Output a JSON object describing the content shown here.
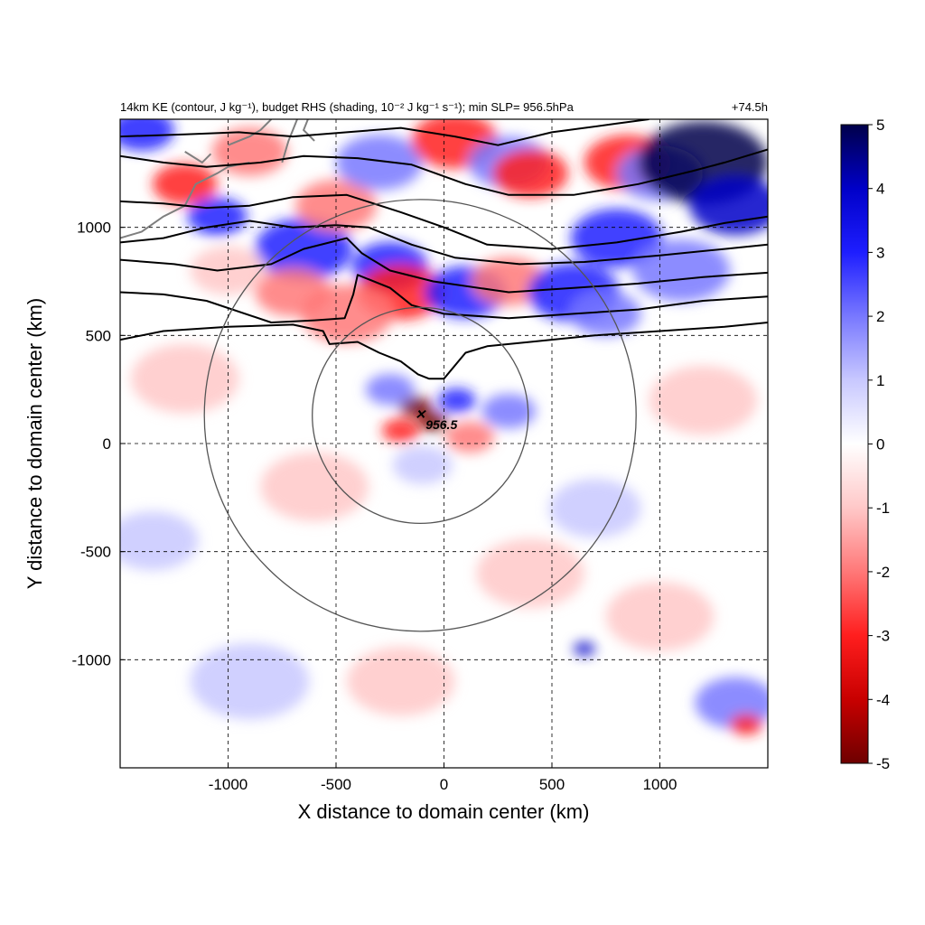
{
  "chart_data": {
    "type": "heatmap",
    "title_left": "14km KE (contour, J kg⁻¹), budget RHS (shading, 10⁻² J kg⁻¹ s⁻¹); min SLP= 956.5hPa",
    "title_right": "+74.5h",
    "xlabel": "X distance to domain center (km)",
    "ylabel": "Y distance to domain center (km)",
    "xlim": [
      -1500,
      1500
    ],
    "ylim": [
      -1500,
      1500
    ],
    "xticks": [
      -1000,
      -500,
      0,
      500,
      1000
    ],
    "yticks": [
      -1000,
      -500,
      0,
      500,
      1000
    ],
    "grid": true,
    "colorbar": {
      "min": -5,
      "max": 5,
      "ticks": [
        5,
        4,
        3,
        2,
        1,
        0,
        -1,
        -2,
        -3,
        -4,
        -5
      ],
      "colors": [
        "#00004a",
        "#0000c8",
        "#1e1eff",
        "#7878ff",
        "#c8c8ff",
        "#ffffff",
        "#ffc8c8",
        "#ff7878",
        "#ff1e1e",
        "#c80000",
        "#6e0000"
      ],
      "placement": "right"
    },
    "storm_center": {
      "x": -110,
      "y": 130,
      "label": "956.5",
      "marker": "x"
    },
    "range_rings_km": [
      500,
      1000
    ],
    "blobs": [
      {
        "x": -1400,
        "y": 1450,
        "r": 120,
        "v": 3
      },
      {
        "x": -1200,
        "y": 1200,
        "r": 120,
        "v": -3
      },
      {
        "x": -1050,
        "y": 1050,
        "r": 110,
        "v": 3
      },
      {
        "x": -900,
        "y": 1350,
        "r": 140,
        "v": -2
      },
      {
        "x": -650,
        "y": 900,
        "r": 180,
        "v": 3
      },
      {
        "x": -500,
        "y": 1100,
        "r": 150,
        "v": -2
      },
      {
        "x": -300,
        "y": 1300,
        "r": 160,
        "v": 2
      },
      {
        "x": -250,
        "y": 820,
        "r": 140,
        "v": 3
      },
      {
        "x": -200,
        "y": 700,
        "r": 160,
        "v": -3
      },
      {
        "x": -450,
        "y": 600,
        "r": 170,
        "v": -2
      },
      {
        "x": 50,
        "y": 1400,
        "r": 160,
        "v": -3
      },
      {
        "x": 300,
        "y": 1300,
        "r": 150,
        "v": 2
      },
      {
        "x": 400,
        "y": 1250,
        "r": 140,
        "v": -3
      },
      {
        "x": 100,
        "y": 700,
        "r": 150,
        "v": 3
      },
      {
        "x": 300,
        "y": 750,
        "r": 140,
        "v": -2
      },
      {
        "x": 600,
        "y": 700,
        "r": 170,
        "v": 3
      },
      {
        "x": 800,
        "y": 950,
        "r": 170,
        "v": 3
      },
      {
        "x": 850,
        "y": 1300,
        "r": 160,
        "v": -3
      },
      {
        "x": 1000,
        "y": 1250,
        "r": 160,
        "v": 2
      },
      {
        "x": 1200,
        "y": 1300,
        "r": 240,
        "v": 5
      },
      {
        "x": 1350,
        "y": 1100,
        "r": 170,
        "v": 4
      },
      {
        "x": 1100,
        "y": 800,
        "r": 180,
        "v": 2
      },
      {
        "x": 750,
        "y": 600,
        "r": 130,
        "v": 2
      },
      {
        "x": -700,
        "y": 700,
        "r": 140,
        "v": -2
      },
      {
        "x": -1000,
        "y": 800,
        "r": 140,
        "v": -1
      },
      {
        "x": -130,
        "y": 170,
        "r": 60,
        "v": -5
      },
      {
        "x": -50,
        "y": 100,
        "r": 55,
        "v": -5
      },
      {
        "x": -200,
        "y": 60,
        "r": 70,
        "v": -3
      },
      {
        "x": 60,
        "y": 200,
        "r": 70,
        "v": 3
      },
      {
        "x": -250,
        "y": 250,
        "r": 90,
        "v": 2
      },
      {
        "x": 120,
        "y": 30,
        "r": 90,
        "v": -2
      },
      {
        "x": 300,
        "y": 150,
        "r": 100,
        "v": 2
      },
      {
        "x": -100,
        "y": -100,
        "r": 110,
        "v": 1
      },
      {
        "x": -1350,
        "y": -450,
        "r": 170,
        "v": 1
      },
      {
        "x": -1200,
        "y": 300,
        "r": 200,
        "v": -1
      },
      {
        "x": -600,
        "y": -200,
        "r": 200,
        "v": -1
      },
      {
        "x": 400,
        "y": -600,
        "r": 200,
        "v": -1
      },
      {
        "x": 700,
        "y": -300,
        "r": 170,
        "v": 1
      },
      {
        "x": 650,
        "y": -950,
        "r": 40,
        "v": 4
      },
      {
        "x": 1350,
        "y": -1200,
        "r": 150,
        "v": 2
      },
      {
        "x": 1400,
        "y": -1300,
        "r": 60,
        "v": -3
      },
      {
        "x": -900,
        "y": -1100,
        "r": 220,
        "v": 1
      },
      {
        "x": -200,
        "y": -1100,
        "r": 200,
        "v": -1
      },
      {
        "x": 1000,
        "y": -800,
        "r": 200,
        "v": -1
      },
      {
        "x": 1200,
        "y": 200,
        "r": 200,
        "v": -1
      }
    ],
    "ke_contours": [
      [
        [
          -1500,
          480
        ],
        [
          -1300,
          520
        ],
        [
          -1000,
          540
        ],
        [
          -700,
          550
        ],
        [
          -560,
          520
        ],
        [
          -530,
          460
        ],
        [
          -400,
          470
        ],
        [
          -300,
          420
        ],
        [
          -200,
          380
        ],
        [
          -120,
          320
        ],
        [
          -70,
          300
        ],
        [
          0,
          300
        ],
        [
          100,
          420
        ],
        [
          200,
          450
        ],
        [
          400,
          470
        ],
        [
          700,
          500
        ],
        [
          1000,
          520
        ],
        [
          1300,
          540
        ],
        [
          1500,
          560
        ]
      ],
      [
        [
          -1500,
          700
        ],
        [
          -1300,
          690
        ],
        [
          -1100,
          660
        ],
        [
          -800,
          560
        ],
        [
          -600,
          570
        ],
        [
          -460,
          580
        ],
        [
          -420,
          690
        ],
        [
          -400,
          780
        ],
        [
          -250,
          720
        ],
        [
          -150,
          640
        ],
        [
          0,
          600
        ],
        [
          300,
          580
        ],
        [
          600,
          600
        ],
        [
          900,
          620
        ],
        [
          1200,
          660
        ],
        [
          1500,
          680
        ]
      ],
      [
        [
          -1500,
          850
        ],
        [
          -1250,
          830
        ],
        [
          -1050,
          800
        ],
        [
          -800,
          830
        ],
        [
          -650,
          900
        ],
        [
          -450,
          950
        ],
        [
          -380,
          880
        ],
        [
          -250,
          800
        ],
        [
          -50,
          750
        ],
        [
          300,
          700
        ],
        [
          600,
          720
        ],
        [
          900,
          740
        ],
        [
          1200,
          770
        ],
        [
          1500,
          790
        ]
      ],
      [
        [
          -1500,
          930
        ],
        [
          -1300,
          950
        ],
        [
          -1100,
          1000
        ],
        [
          -900,
          1030
        ],
        [
          -700,
          1000
        ],
        [
          -500,
          1010
        ],
        [
          -350,
          1000
        ],
        [
          -150,
          920
        ],
        [
          50,
          860
        ],
        [
          350,
          830
        ],
        [
          650,
          840
        ],
        [
          1000,
          870
        ],
        [
          1300,
          900
        ],
        [
          1500,
          920
        ]
      ],
      [
        [
          -1500,
          1120
        ],
        [
          -1300,
          1110
        ],
        [
          -1100,
          1090
        ],
        [
          -900,
          1100
        ],
        [
          -700,
          1140
        ],
        [
          -450,
          1150
        ],
        [
          -200,
          1070
        ],
        [
          0,
          1000
        ],
        [
          200,
          920
        ],
        [
          500,
          900
        ],
        [
          800,
          930
        ],
        [
          1100,
          980
        ],
        [
          1300,
          1020
        ],
        [
          1500,
          1050
        ]
      ],
      [
        [
          -1500,
          1330
        ],
        [
          -1300,
          1300
        ],
        [
          -1100,
          1280
        ],
        [
          -850,
          1300
        ],
        [
          -650,
          1330
        ],
        [
          -400,
          1320
        ],
        [
          -150,
          1290
        ],
        [
          100,
          1200
        ],
        [
          300,
          1150
        ],
        [
          600,
          1150
        ],
        [
          900,
          1200
        ],
        [
          1150,
          1260
        ],
        [
          1300,
          1300
        ],
        [
          1500,
          1360
        ]
      ],
      [
        [
          -1500,
          1420
        ],
        [
          -1200,
          1430
        ],
        [
          -950,
          1440
        ],
        [
          -700,
          1420
        ],
        [
          -450,
          1440
        ],
        [
          -200,
          1460
        ],
        [
          50,
          1420
        ],
        [
          250,
          1380
        ],
        [
          500,
          1440
        ],
        [
          800,
          1480
        ],
        [
          950,
          1500
        ]
      ]
    ],
    "coastlines": [
      [
        [
          -1500,
          950
        ],
        [
          -1400,
          980
        ],
        [
          -1300,
          1050
        ],
        [
          -1200,
          1100
        ],
        [
          -1150,
          1200
        ],
        [
          -1050,
          1250
        ],
        [
          -1000,
          1280
        ],
        [
          -900,
          1300
        ]
      ],
      [
        [
          -1000,
          1380
        ],
        [
          -900,
          1420
        ],
        [
          -850,
          1450
        ],
        [
          -800,
          1500
        ]
      ],
      [
        [
          -1200,
          1350
        ],
        [
          -1120,
          1300
        ],
        [
          -1080,
          1340
        ]
      ],
      [
        [
          -750,
          1300
        ],
        [
          -720,
          1400
        ],
        [
          -700,
          1450
        ],
        [
          -680,
          1500
        ]
      ],
      [
        [
          -600,
          1400
        ],
        [
          -650,
          1450
        ],
        [
          -630,
          1500
        ]
      ]
    ]
  }
}
